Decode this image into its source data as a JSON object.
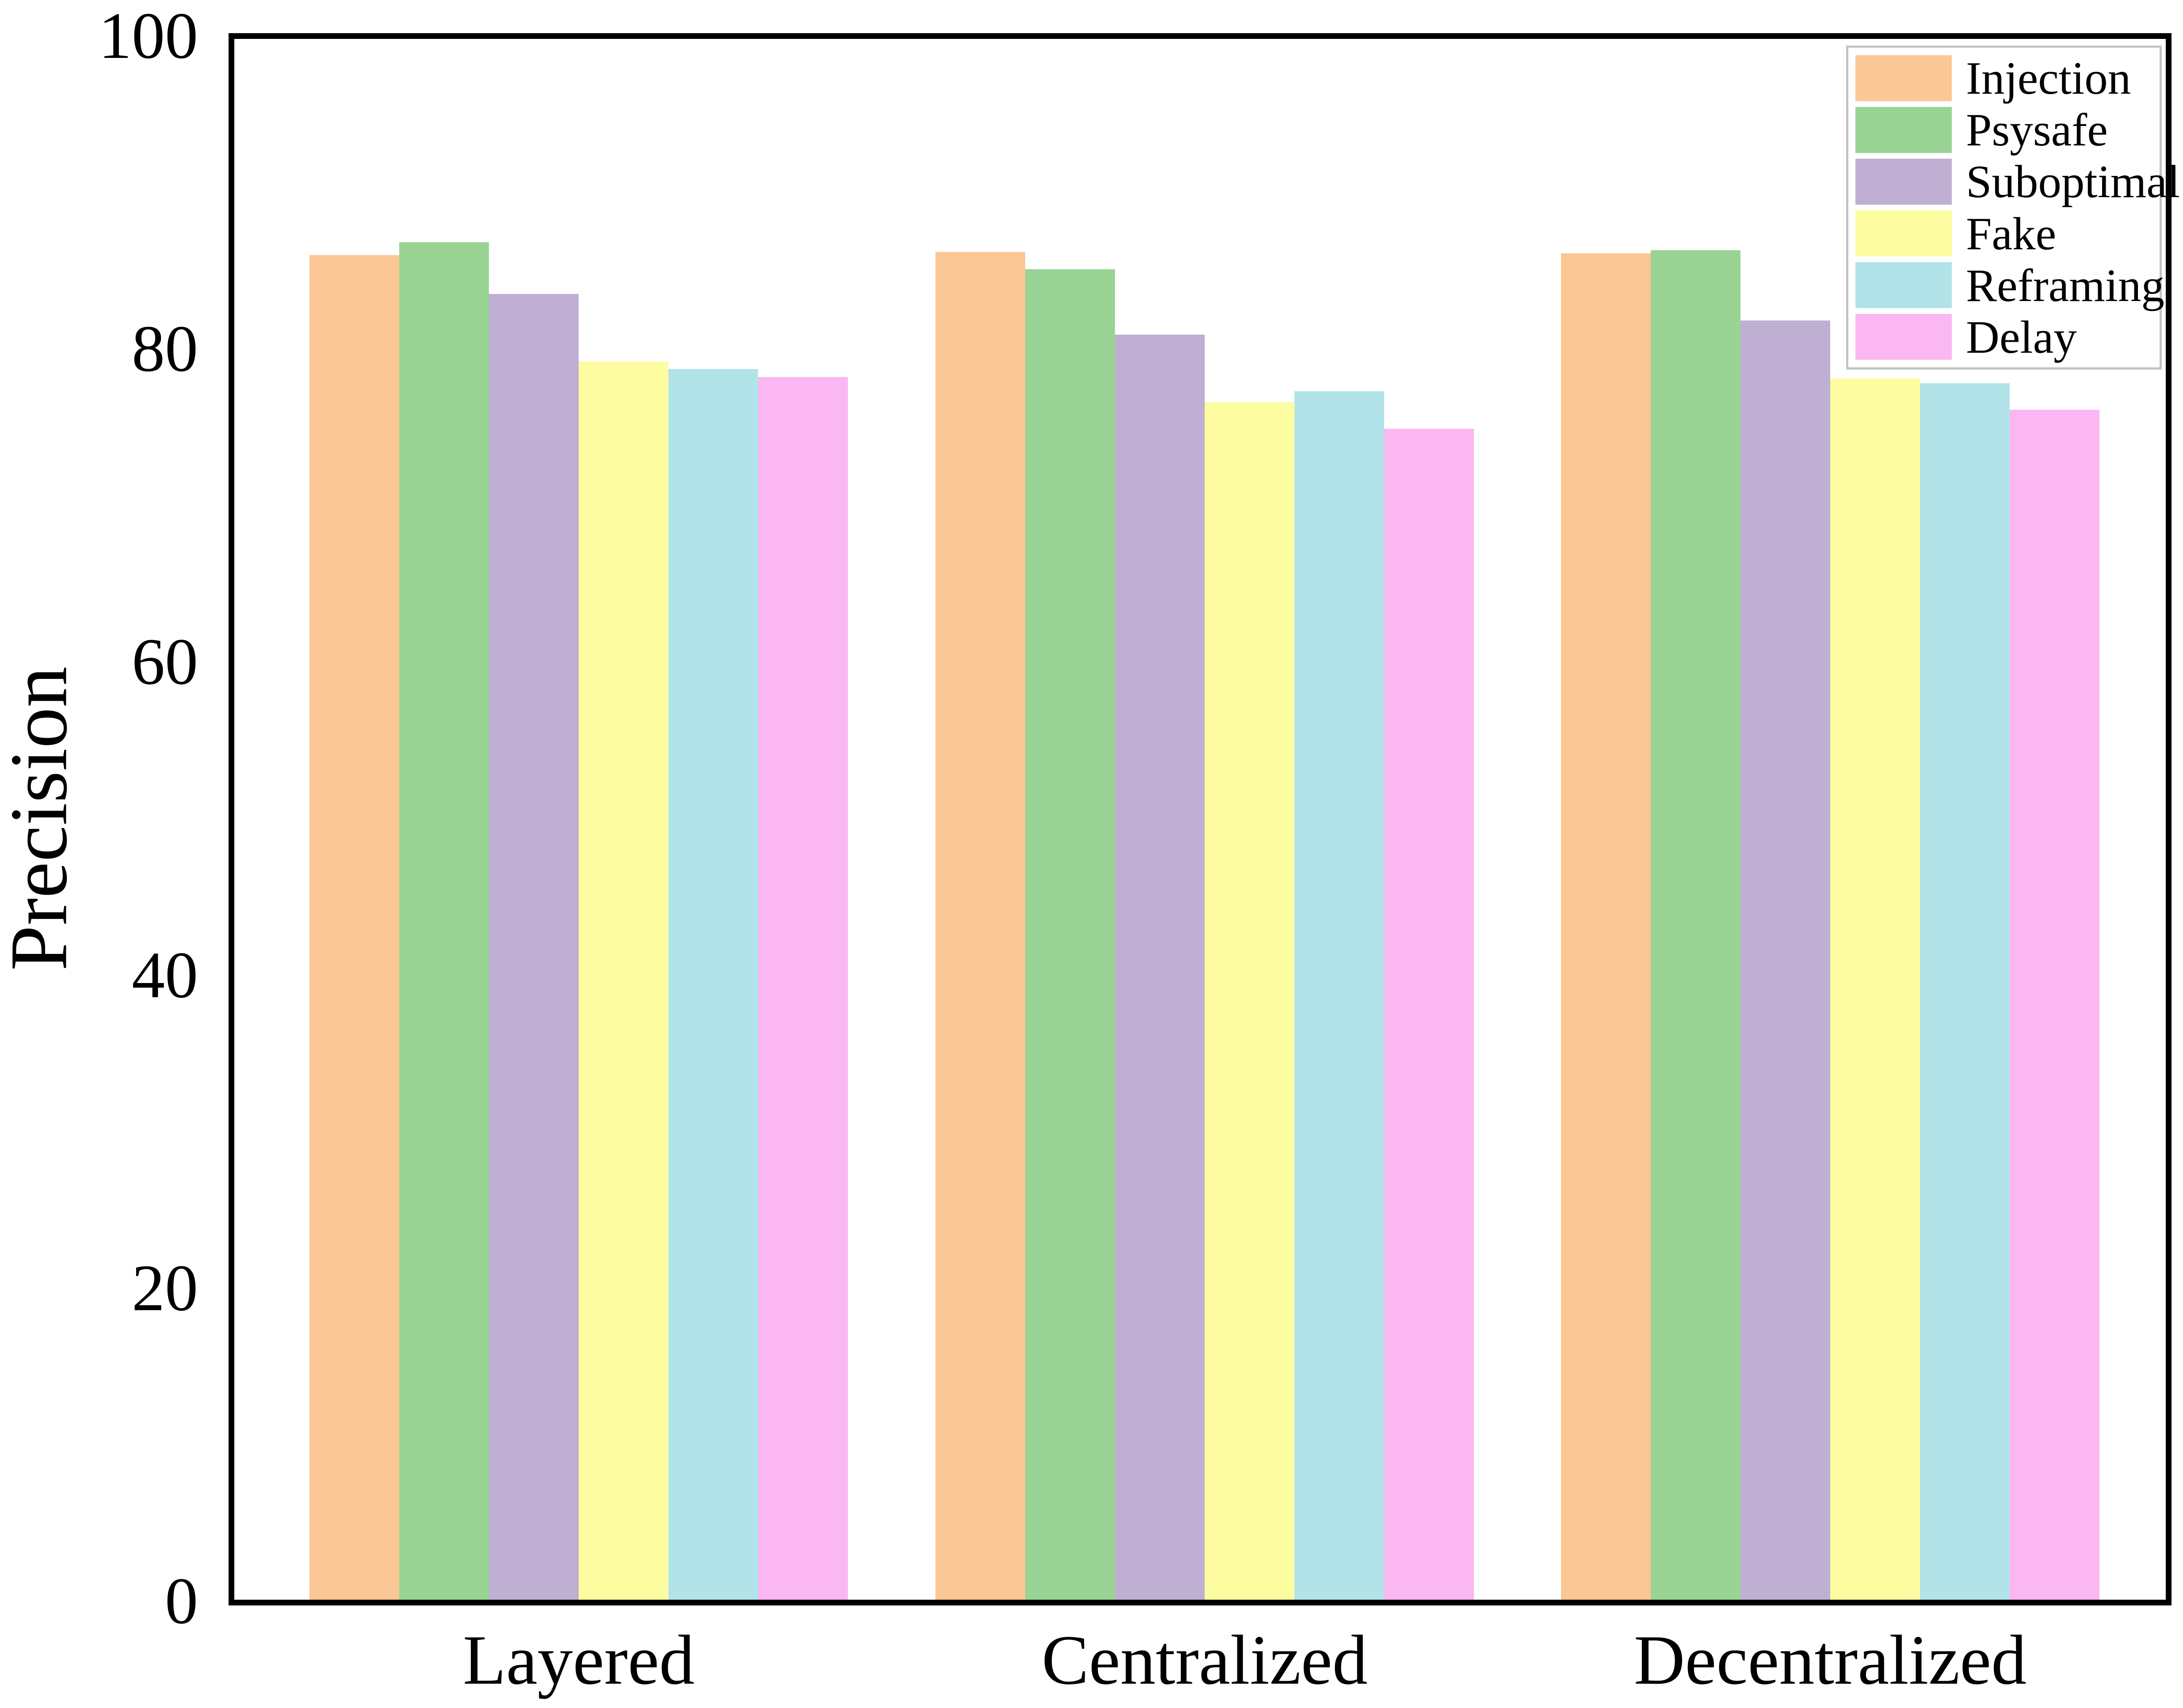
{
  "chart_data": {
    "type": "bar",
    "title": "",
    "xlabel": "",
    "ylabel": "Precision",
    "categories": [
      "Layered",
      "Centralized",
      "Decentralized"
    ],
    "series": [
      {
        "name": "Injection",
        "color": "#FBC795",
        "values": [
          86.0,
          86.2,
          86.1
        ]
      },
      {
        "name": "Psysafe",
        "color": "#99D494",
        "values": [
          86.8,
          85.1,
          86.3
        ]
      },
      {
        "name": "Suboptimal",
        "color": "#BFAFD3",
        "values": [
          83.5,
          80.9,
          81.8
        ]
      },
      {
        "name": "Fake",
        "color": "#FDFCA0",
        "values": [
          79.2,
          76.6,
          78.1
        ]
      },
      {
        "name": "Reframing",
        "color": "#B2E3E8",
        "values": [
          78.7,
          77.3,
          77.8
        ]
      },
      {
        "name": "Delay",
        "color": "#FAB7F2",
        "values": [
          78.2,
          74.9,
          76.1
        ]
      }
    ],
    "ylim": [
      0,
      100
    ],
    "yticks": [
      0,
      20,
      40,
      60,
      80,
      100
    ],
    "legend_position": "upper right",
    "grid": false,
    "axis_color": "#000000",
    "legend_border_color": "#c3c3c3"
  }
}
